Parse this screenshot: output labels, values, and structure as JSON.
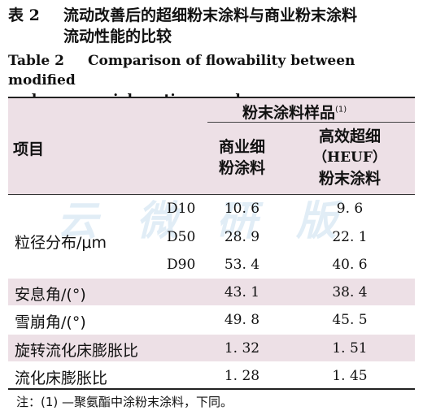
{
  "caption": {
    "cn_number": "表 2",
    "cn_title_line1": "流动改善后的超细粉末涂料与商业粉末涂料",
    "cn_title_line2": "流动性能的比较",
    "en_number": "Table 2",
    "en_title_line1": "Comparison of flowability between modified",
    "en_title_line2": "and commercial coating powders"
  },
  "watermark": "云微研版",
  "table": {
    "group_header": "粉末涂料样品",
    "group_header_note": "(1)",
    "item_header": "项目",
    "col1_header_line1": "商业细",
    "col1_header_line2": "粉涂料",
    "col2_header_line1": "高效超细",
    "col2_header_line2": "（HEUF）",
    "col2_header_line3": "粉末涂料",
    "particle_label": "粒径分布/μm",
    "rows": [
      {
        "sub": "D10",
        "v1": "10. 6",
        "v2": "9. 6"
      },
      {
        "sub": "D50",
        "v1": "28. 9",
        "v2": "22. 1"
      },
      {
        "sub": "D90",
        "v1": "53. 4",
        "v2": "40. 6"
      },
      {
        "label": "安息角/(°)",
        "v1": "43. 1",
        "v2": "38. 4"
      },
      {
        "label": "雪崩角/(°)",
        "v1": "49. 8",
        "v2": "45. 5"
      },
      {
        "label": "旋转流化床膨胀比",
        "v1": "1. 32",
        "v2": "1. 51"
      },
      {
        "label": "流化床膨胀比",
        "v1": "1. 28",
        "v2": "1. 45"
      }
    ]
  },
  "note": "注：(1) —聚氨酯中涂粉末涂料，下同。",
  "colors": {
    "header_band": "#ede0e6",
    "watermark": "#c9dff0"
  }
}
